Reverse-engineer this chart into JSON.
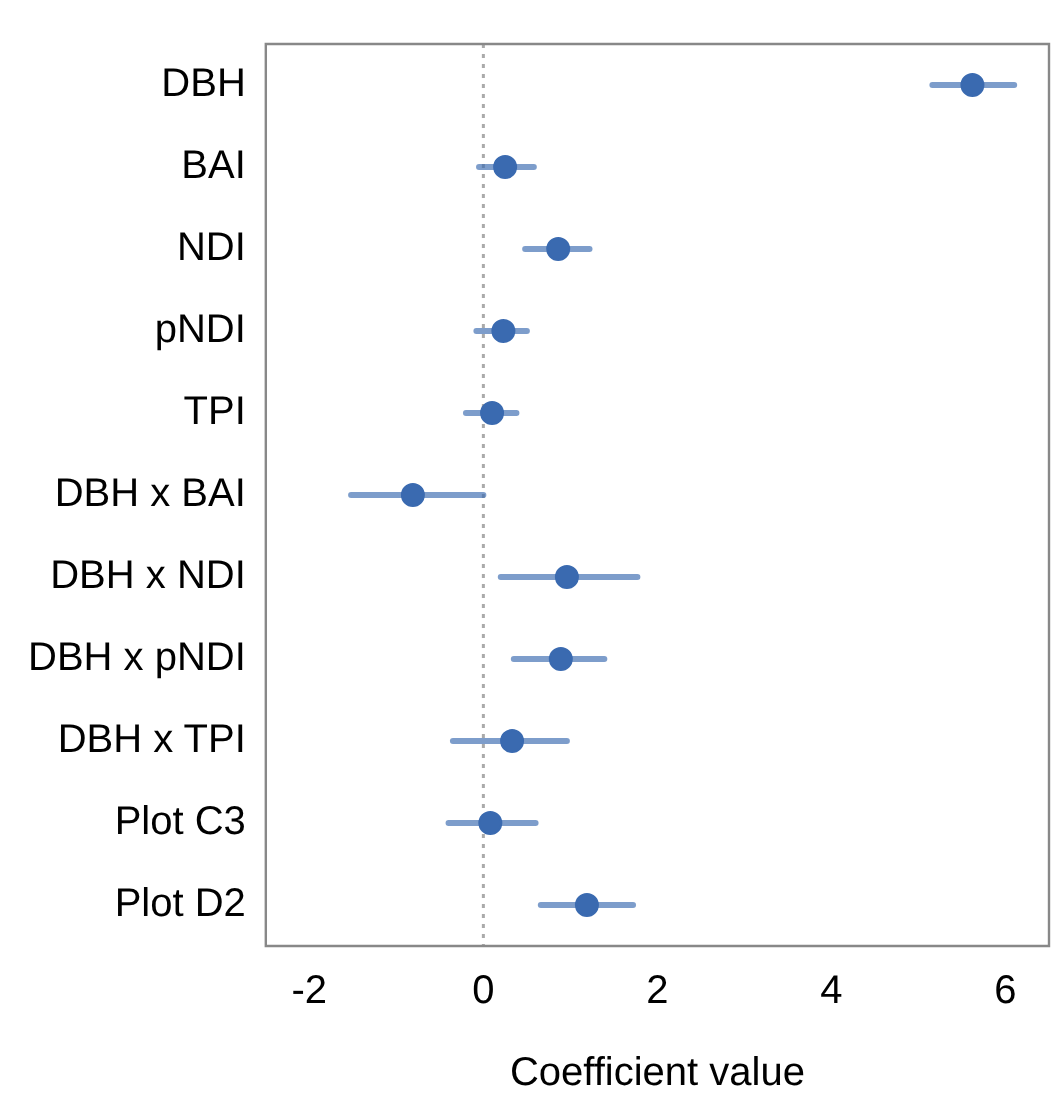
{
  "chart_data": {
    "type": "scatter",
    "xlabel": "Coefficient value",
    "categories": [
      "DBH",
      "BAI",
      "NDI",
      "pNDI",
      "TPI",
      "DBH x BAI",
      "DBH x NDI",
      "DBH x pNDI",
      "DBH x TPI",
      "Plot C3",
      "Plot D2"
    ],
    "series": [
      {
        "color": "#3a6ab0",
        "values": [
          5.62,
          0.25,
          0.86,
          0.23,
          0.1,
          -0.81,
          0.96,
          0.89,
          0.33,
          0.08,
          1.19
        ],
        "errors": [
          [
            5.16,
            6.1
          ],
          [
            -0.05,
            0.58
          ],
          [
            0.48,
            1.22
          ],
          [
            -0.08,
            0.5
          ],
          [
            -0.2,
            0.38
          ],
          [
            -1.52,
            0
          ],
          [
            0.2,
            1.77
          ],
          [
            0.35,
            1.39
          ],
          [
            -0.35,
            0.96
          ],
          [
            -0.4,
            0.6
          ],
          [
            0.66,
            1.72
          ]
        ]
      }
    ],
    "orientation": "horizontal",
    "xlim": [
      -2.5,
      6.5
    ],
    "xticks": [
      -2,
      0,
      2,
      4,
      6
    ],
    "ref_lines": [
      {
        "axis": "x",
        "value": 0,
        "color": "#aaaaaa",
        "line_style": "dotted"
      }
    ],
    "grid": false,
    "legend": false,
    "marker": "circle"
  }
}
